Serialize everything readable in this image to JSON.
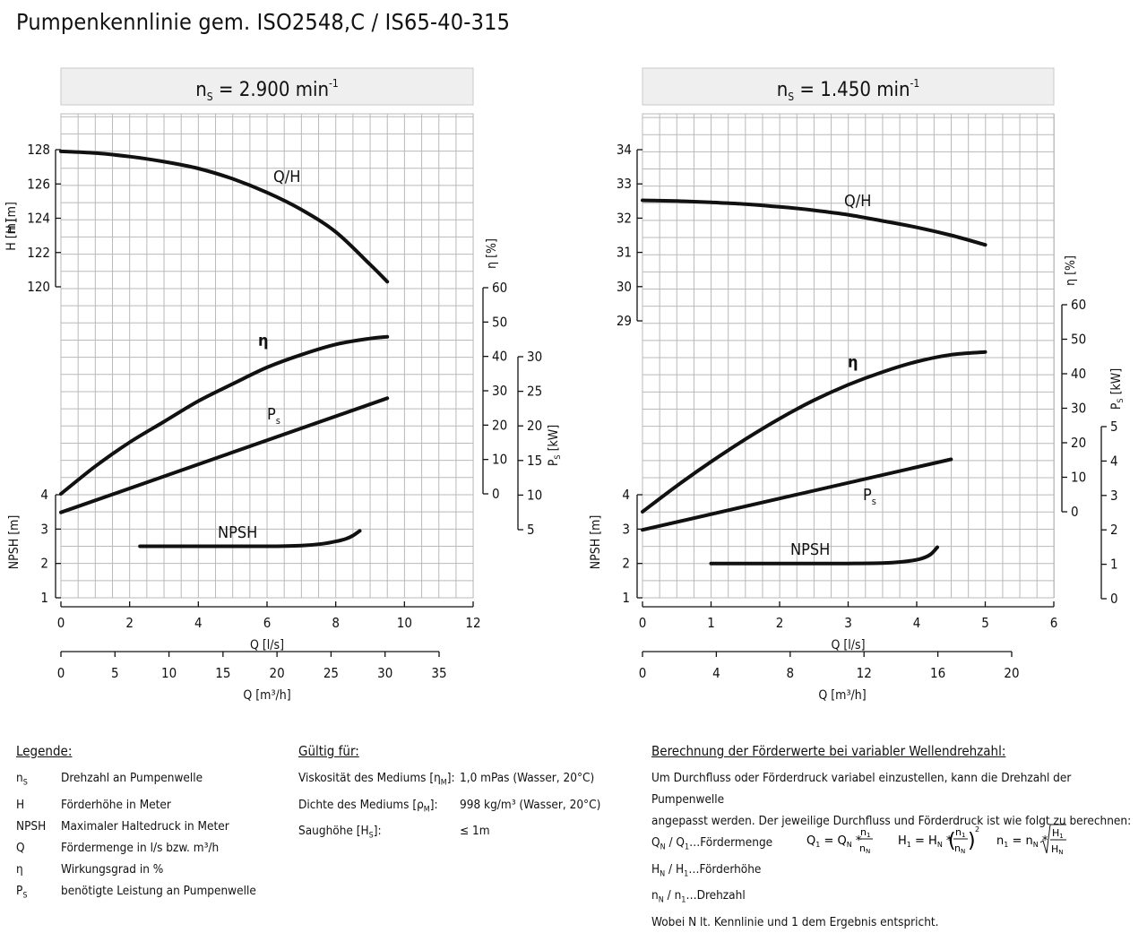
{
  "title": "Pumpenkennlinie gem. ISO2548,C / IS65-40-315",
  "chart_data": [
    {
      "type": "line",
      "header": "nS = 2.900 min-1",
      "speed_label": {
        "main": "n",
        "sub": "S",
        "rest": " = 2.900 min",
        "sup": "-1"
      },
      "x": {
        "label": "Q [l/s]",
        "range": [
          0,
          12
        ],
        "ticks": [
          0,
          2,
          4,
          6,
          8,
          10,
          12
        ]
      },
      "x2": {
        "label": "Q [m³/h]",
        "range": [
          0,
          43.2
        ],
        "ticks": [
          0,
          5,
          10,
          15,
          20,
          25,
          30,
          35
        ]
      },
      "y_head": {
        "label": "H [m]",
        "ticks": [
          120,
          122,
          124,
          126,
          128
        ]
      },
      "y_npsh": {
        "label": "NPSH [m]",
        "ticks": [
          1,
          2,
          3,
          4
        ]
      },
      "y_eta": {
        "label": "η [%]",
        "ticks": [
          0,
          10,
          20,
          30,
          40,
          50,
          60
        ]
      },
      "y_power": {
        "label": "PS [kW]",
        "ticks": [
          5,
          10,
          15,
          20,
          25,
          30
        ]
      },
      "series": [
        {
          "name": "Q/H",
          "axis": "head",
          "x": [
            0,
            1,
            2,
            3,
            4,
            5,
            6,
            7,
            8,
            9,
            9.5
          ],
          "y": [
            127.9,
            127.8,
            127.6,
            127.3,
            126.9,
            126.3,
            125.5,
            124.5,
            123.2,
            121.3,
            120.3
          ]
        },
        {
          "name": "η",
          "axis": "eta",
          "x": [
            0,
            1,
            2,
            3,
            4,
            5,
            6,
            7,
            8,
            9,
            9.5
          ],
          "y": [
            0,
            8,
            15,
            21,
            27,
            32,
            36.8,
            40.5,
            43.5,
            45.2,
            45.7
          ]
        },
        {
          "name": "Ps",
          "axis": "power",
          "x": [
            0,
            9.5
          ],
          "y": [
            7.5,
            24
          ]
        },
        {
          "name": "NPSH",
          "axis": "npsh",
          "x": [
            2.3,
            4,
            6,
            7,
            7.6,
            8,
            8.3,
            8.5,
            8.7
          ],
          "y": [
            2.5,
            2.5,
            2.5,
            2.52,
            2.57,
            2.64,
            2.72,
            2.81,
            2.95
          ]
        }
      ]
    },
    {
      "type": "line",
      "header": "nS = 1.450 min-1",
      "speed_label": {
        "main": "n",
        "sub": "S",
        "rest": " = 1.450 min",
        "sup": "-1"
      },
      "x": {
        "label": "Q [l/s]",
        "range": [
          0,
          6
        ],
        "ticks": [
          0,
          1,
          2,
          3,
          4,
          5,
          6
        ]
      },
      "x2": {
        "label": "Q [m³/h]",
        "range": [
          0,
          21.6
        ],
        "ticks": [
          0,
          4,
          8,
          12,
          16,
          20
        ]
      },
      "y_head": {
        "label": "H [m]",
        "ticks": [
          29,
          30,
          31,
          32,
          33,
          34
        ]
      },
      "y_npsh": {
        "label": "NPSH [m]",
        "ticks": [
          1,
          2,
          3,
          4
        ]
      },
      "y_eta": {
        "label": "η [%]",
        "ticks": [
          0,
          10,
          20,
          30,
          40,
          50,
          60
        ]
      },
      "y_power": {
        "label": "PS [kW]",
        "ticks": [
          0,
          1,
          2,
          3,
          4,
          5
        ]
      },
      "series": [
        {
          "name": "Q/H",
          "axis": "head",
          "x": [
            0,
            0.5,
            1,
            1.5,
            2,
            2.5,
            3,
            3.5,
            4,
            4.5,
            5
          ],
          "y": [
            32.52,
            32.5,
            32.46,
            32.41,
            32.33,
            32.23,
            32.1,
            31.92,
            31.73,
            31.5,
            31.22
          ]
        },
        {
          "name": "η",
          "axis": "eta",
          "x": [
            0,
            0.5,
            1,
            1.5,
            2,
            2.5,
            3,
            3.5,
            4,
            4.5,
            5
          ],
          "y": [
            0,
            7.5,
            14.5,
            21,
            27,
            32.3,
            36.8,
            40.5,
            43.5,
            45.5,
            46.3
          ]
        },
        {
          "name": "Ps",
          "axis": "power",
          "x": [
            0,
            4.5
          ],
          "y": [
            2,
            4.05
          ]
        },
        {
          "name": "NPSH",
          "axis": "npsh",
          "x": [
            1,
            2,
            3,
            3.5,
            3.8,
            4.05,
            4.2,
            4.3
          ],
          "y": [
            2,
            2,
            2,
            2.01,
            2.05,
            2.13,
            2.26,
            2.47
          ]
        }
      ]
    }
  ],
  "legend": {
    "heading": "Legende:",
    "items": [
      {
        "key": "n",
        "key_sub": "S",
        "text": "Drehzahl an Pumpenwelle"
      },
      {
        "key": "H",
        "key_sub": "",
        "text": "Förderhöhe in Meter"
      },
      {
        "key": "NPSH",
        "key_sub": "",
        "text": "Maximaler Haltedruck in Meter"
      },
      {
        "key": "Q",
        "key_sub": "",
        "text": "Fördermenge in l/s bzw. m³/h"
      },
      {
        "key": "η",
        "key_sub": "",
        "text": "Wirkungsgrad in %"
      },
      {
        "key": "P",
        "key_sub": "S",
        "text": "benötigte Leistung an Pumpenwelle"
      }
    ]
  },
  "valid": {
    "heading": "Gültig für:",
    "rows": [
      {
        "k": "Viskosität des Mediums [η",
        "k_sub": "M",
        "k_end": "]:",
        "v": "1,0 mPas (Wasser, 20°C)"
      },
      {
        "k": "Dichte des Mediums [ρ",
        "k_sub": "M",
        "k_end": "]:",
        "v": "998 kg/m³ (Wasser, 20°C)"
      },
      {
        "k": "Saughöhe [H",
        "k_sub": "S",
        "k_end": "]:",
        "v": "≤ 1m"
      }
    ]
  },
  "calc": {
    "heading": "Berechnung der Förderwerte bei variabler Wellendrehzahl:",
    "line1": "Um Durchfluss oder Förderdruck variabel einzustellen, kann die Drehzahl der Pumpenwelle",
    "line2": "angepasst werden. Der jeweilige Durchfluss und Förderdruck ist wie folgt zu berechnen:",
    "def1": "Qₙ / Q₁…Fördermenge",
    "def1_a": "Q",
    "def1_b": "N",
    "def1_c": " / Q",
    "def1_d": "1",
    "def1_e": "…Fördermenge",
    "def2_a": "H",
    "def2_b": "N",
    "def2_c": " / H",
    "def2_d": "1",
    "def2_e": "…Förderhöhe",
    "def3_a": "n",
    "def3_b": "N",
    "def3_c": " / n",
    "def3_d": "1",
    "def3_e": "…Drehzahl",
    "final": "Wobei N lt. Kennlinie und 1 dem Ergebnis entspricht."
  }
}
